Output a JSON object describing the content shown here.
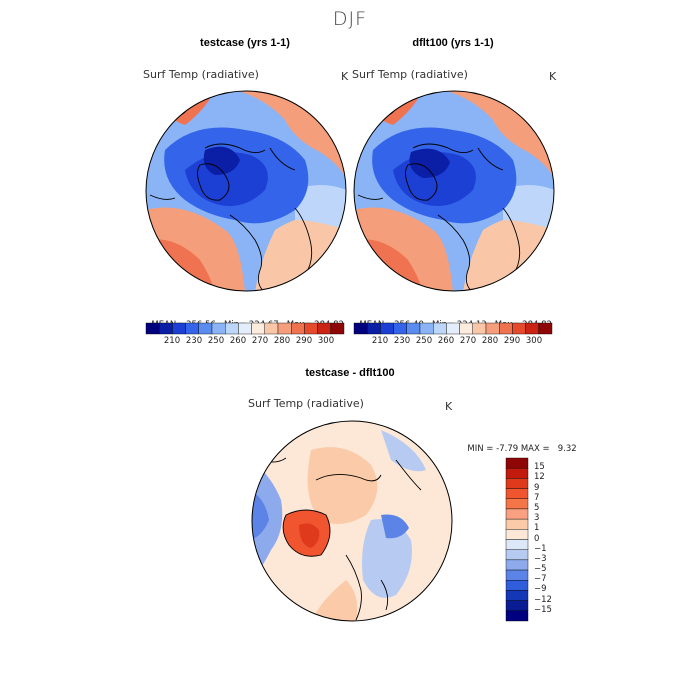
{
  "title": "DJF",
  "panels": [
    {
      "title": "testcase (yrs 1-1)",
      "variable": "Surf Temp (radiative)",
      "unit": "K",
      "mean_label": "MEAN=",
      "mean": "256.56",
      "min_label": "Min=",
      "min": "224.67",
      "max_label": "Max=",
      "max": "284.82"
    },
    {
      "title": "dflt100 (yrs 1-1)",
      "variable": "Surf Temp (radiative)",
      "unit": "K",
      "mean_label": "MEAN=",
      "mean": "256.40",
      "min_label": "Min=",
      "min": "224.13",
      "max_label": "Max=",
      "max": "284.82"
    }
  ],
  "abs_colorbar": {
    "ticks": [
      "210",
      "230",
      "250",
      "260",
      "270",
      "280",
      "290",
      "300"
    ],
    "colors": [
      "#00007f",
      "#0a1fa6",
      "#1c3fd4",
      "#3464ea",
      "#5a8cf0",
      "#8ab4f5",
      "#bed6fa",
      "#e3edfc",
      "#fdebdd",
      "#f9c7a8",
      "#f59e7c",
      "#ef7350",
      "#e44a2c",
      "#c92414",
      "#8e0606"
    ]
  },
  "diff_panel": {
    "title": "testcase - dflt100",
    "variable": "Surf Temp (radiative)",
    "unit": "K",
    "min_label": "MIN =",
    "min": "-7.79",
    "max_label": "MAX =",
    "max": "9.32"
  },
  "diff_colorbar": {
    "ticks": [
      "15",
      "12",
      "9",
      "7",
      "5",
      "3",
      "1",
      "0",
      "−1",
      "−3",
      "−5",
      "−7",
      "−9",
      "−12",
      "−15"
    ],
    "colors": [
      "#8e0606",
      "#c21a0c",
      "#e03a1c",
      "#f05530",
      "#f47548",
      "#f8a080",
      "#fbcaa8",
      "#fde8d8",
      "#dce7f8",
      "#b7cbf2",
      "#8caaec",
      "#5c84e6",
      "#2f5ddc",
      "#1437b8",
      "#0a1c94",
      "#000080"
    ]
  },
  "colors": {
    "cold_deep": "#1a3fc8",
    "cold": "#3c6ce0",
    "cool": "#7aa2ee",
    "cool_light": "#b8cef6",
    "neutral_light": "#e3edfc",
    "warm_light": "#f9c9ad",
    "warm": "#f29a76",
    "hot": "#e8593a",
    "diff_neutral": "#fde5d2",
    "diff_warm": "#f6b292",
    "diff_hot": "#ea5b3a",
    "diff_cool": "#b7cbf2",
    "diff_cold": "#5c84e6"
  }
}
